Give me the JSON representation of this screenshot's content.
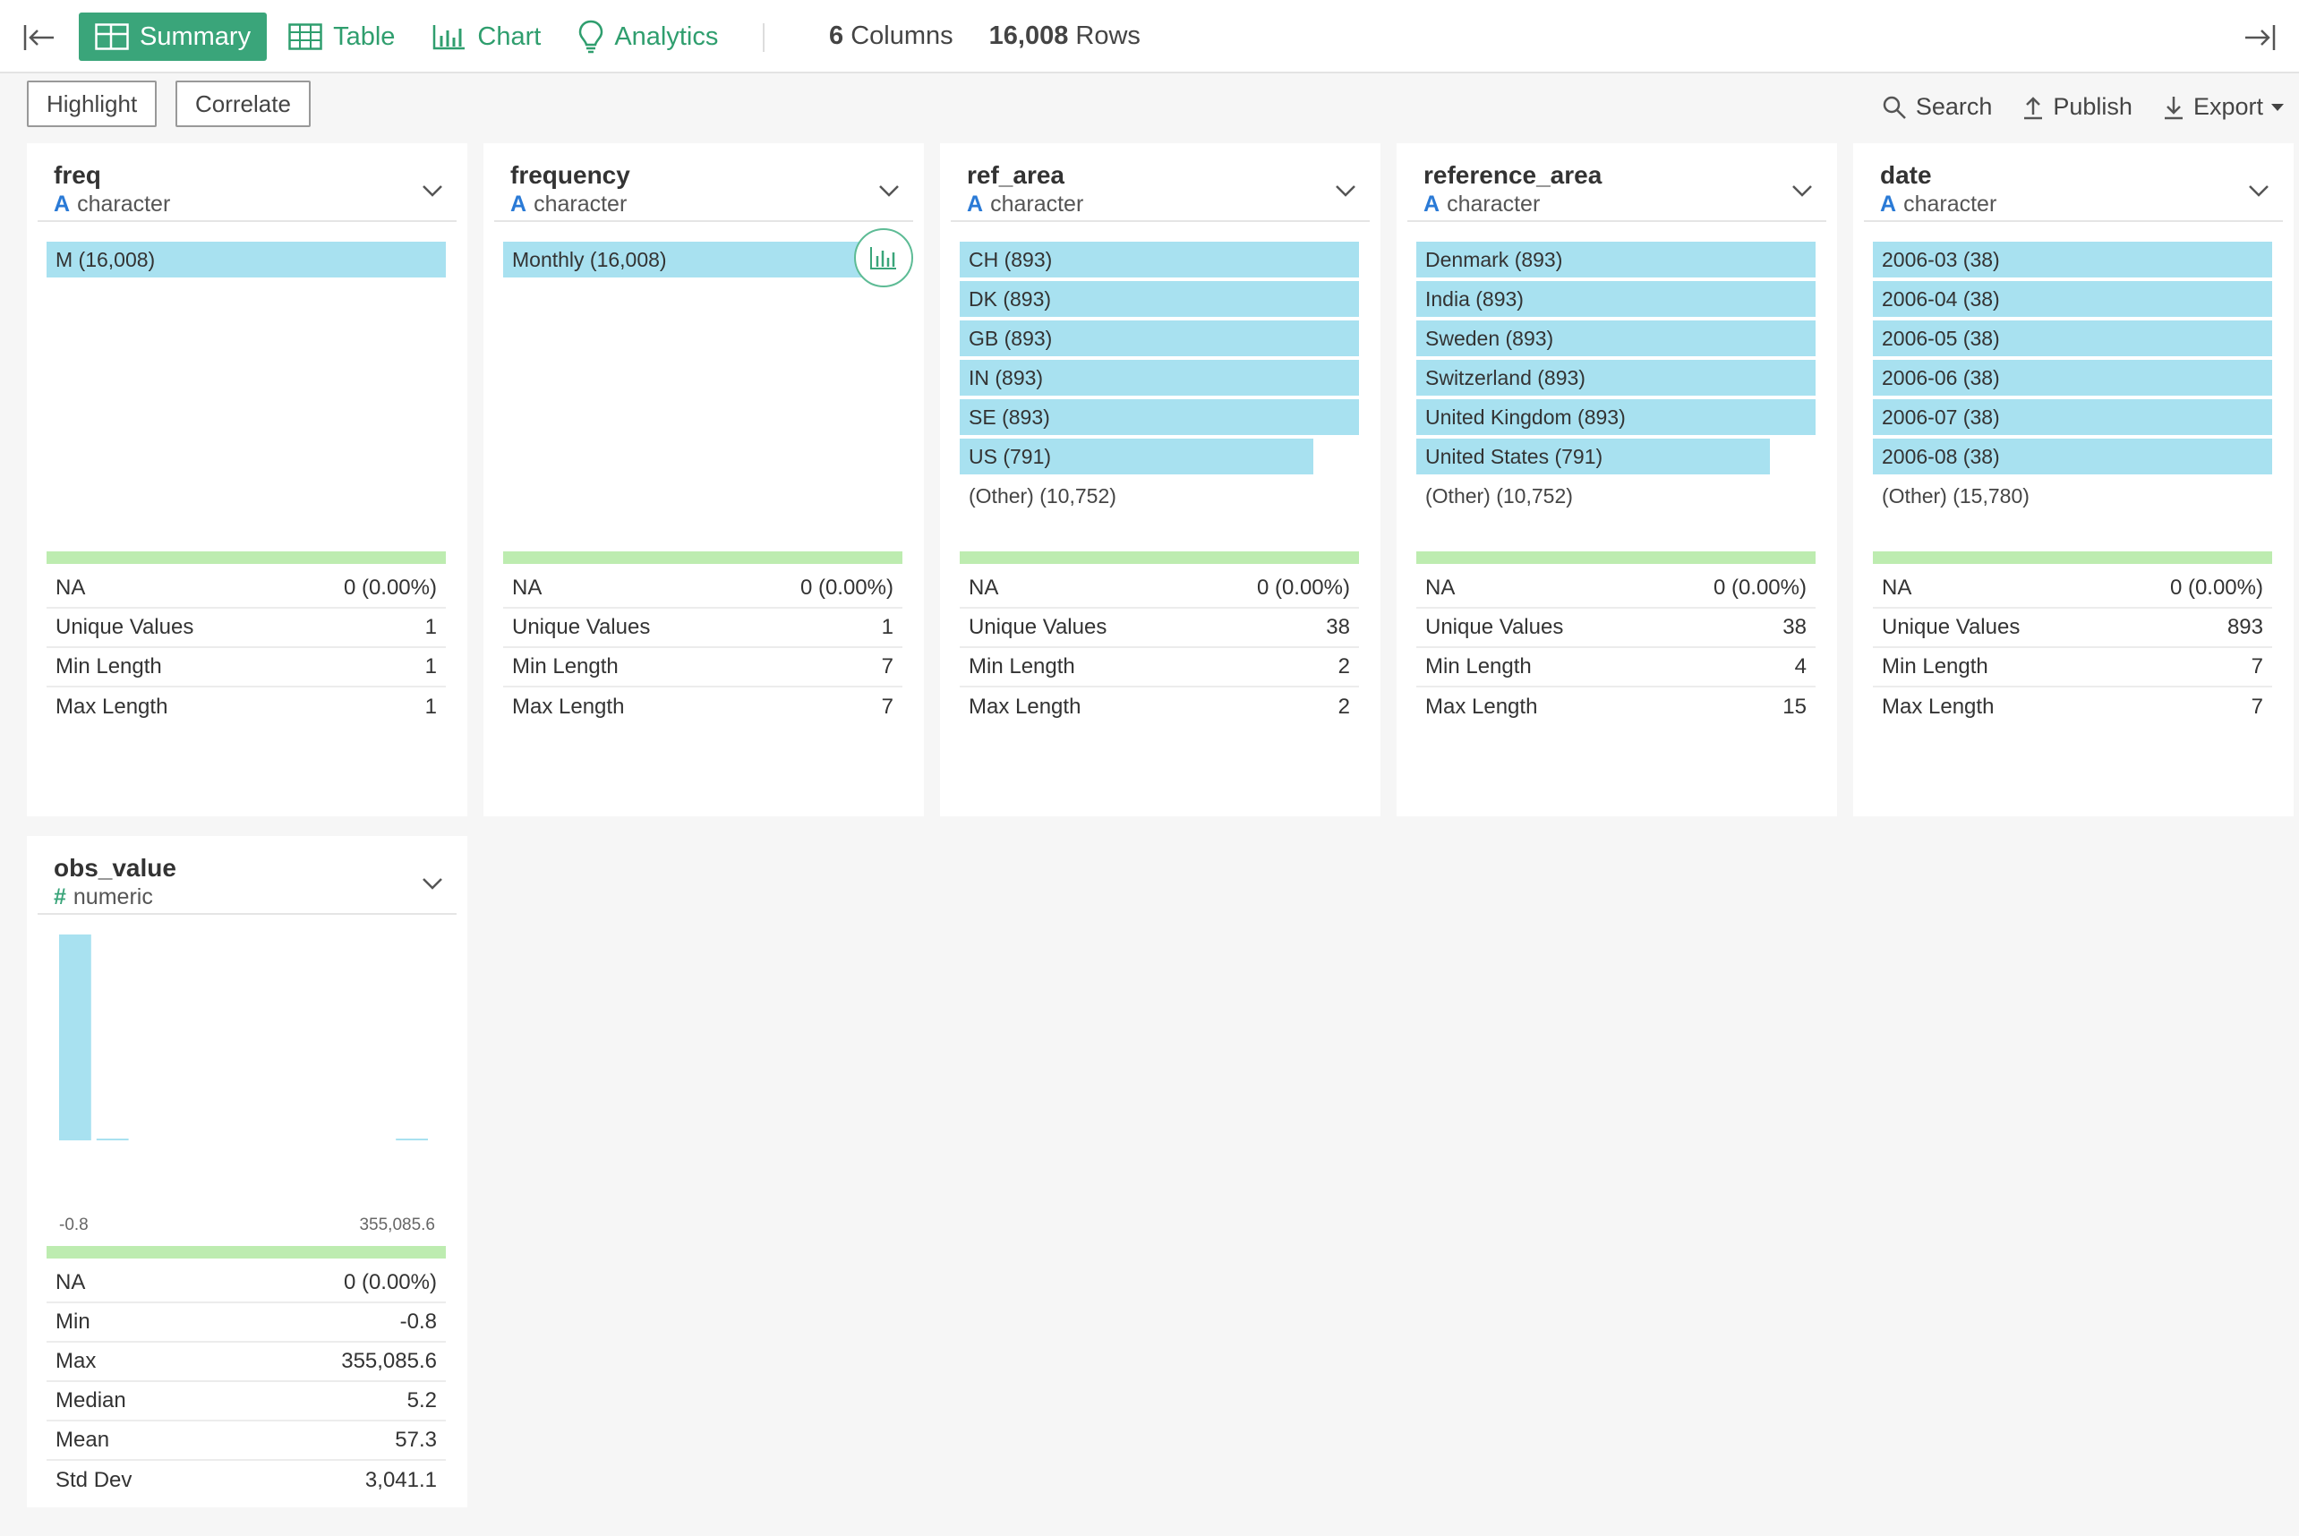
{
  "toolbar": {
    "tabs": [
      {
        "label": "Summary",
        "icon": "table-grid-icon"
      },
      {
        "label": "Table",
        "icon": "table-grid-icon"
      },
      {
        "label": "Chart",
        "icon": "bar-chart-icon"
      },
      {
        "label": "Analytics",
        "icon": "lightbulb-icon"
      }
    ],
    "columns_count": "6",
    "columns_word": "Columns",
    "rows_count": "16,008",
    "rows_word": "Rows",
    "highlight_label": "Highlight",
    "correlate_label": "Correlate",
    "search_label": "Search",
    "publish_label": "Publish",
    "export_label": "Export"
  },
  "columns": [
    {
      "name": "freq",
      "type": "character",
      "bars": [
        {
          "label": "M (16,008)",
          "fraction": 1.0
        }
      ],
      "other": "",
      "stats": [
        {
          "label": "NA",
          "value": "0 (0.00%)"
        },
        {
          "label": "Unique Values",
          "value": "1"
        },
        {
          "label": "Min Length",
          "value": "1"
        },
        {
          "label": "Max Length",
          "value": "1"
        }
      ]
    },
    {
      "name": "frequency",
      "type": "character",
      "bars": [
        {
          "label": "Monthly (16,008)",
          "fraction": 1.0
        }
      ],
      "other": "",
      "stats": [
        {
          "label": "NA",
          "value": "0 (0.00%)"
        },
        {
          "label": "Unique Values",
          "value": "1"
        },
        {
          "label": "Min Length",
          "value": "7"
        },
        {
          "label": "Max Length",
          "value": "7"
        }
      ]
    },
    {
      "name": "ref_area",
      "type": "character",
      "bars": [
        {
          "label": "CH (893)",
          "fraction": 1.0
        },
        {
          "label": "DK (893)",
          "fraction": 1.0
        },
        {
          "label": "GB (893)",
          "fraction": 1.0
        },
        {
          "label": "IN (893)",
          "fraction": 1.0
        },
        {
          "label": "SE (893)",
          "fraction": 1.0
        },
        {
          "label": "US (791)",
          "fraction": 0.886
        }
      ],
      "other": "(Other) (10,752)",
      "stats": [
        {
          "label": "NA",
          "value": "0 (0.00%)"
        },
        {
          "label": "Unique Values",
          "value": "38"
        },
        {
          "label": "Min Length",
          "value": "2"
        },
        {
          "label": "Max Length",
          "value": "2"
        }
      ]
    },
    {
      "name": "reference_area",
      "type": "character",
      "bars": [
        {
          "label": "Denmark (893)",
          "fraction": 1.0
        },
        {
          "label": "India (893)",
          "fraction": 1.0
        },
        {
          "label": "Sweden (893)",
          "fraction": 1.0
        },
        {
          "label": "Switzerland (893)",
          "fraction": 1.0
        },
        {
          "label": "United Kingdom (893)",
          "fraction": 1.0
        },
        {
          "label": "United States (791)",
          "fraction": 0.886
        }
      ],
      "other": "(Other) (10,752)",
      "stats": [
        {
          "label": "NA",
          "value": "0 (0.00%)"
        },
        {
          "label": "Unique Values",
          "value": "38"
        },
        {
          "label": "Min Length",
          "value": "4"
        },
        {
          "label": "Max Length",
          "value": "15"
        }
      ]
    },
    {
      "name": "date",
      "type": "character",
      "bars": [
        {
          "label": "2006-03 (38)",
          "fraction": 1.0
        },
        {
          "label": "2006-04 (38)",
          "fraction": 1.0
        },
        {
          "label": "2006-05 (38)",
          "fraction": 1.0
        },
        {
          "label": "2006-06 (38)",
          "fraction": 1.0
        },
        {
          "label": "2006-07 (38)",
          "fraction": 1.0
        },
        {
          "label": "2006-08 (38)",
          "fraction": 1.0
        }
      ],
      "other": "(Other) (15,780)",
      "stats": [
        {
          "label": "NA",
          "value": "0 (0.00%)"
        },
        {
          "label": "Unique Values",
          "value": "893"
        },
        {
          "label": "Min Length",
          "value": "7"
        },
        {
          "label": "Max Length",
          "value": "7"
        }
      ]
    }
  ],
  "numeric_column": {
    "name": "obs_value",
    "type": "numeric",
    "stats": [
      {
        "label": "NA",
        "value": "0 (0.00%)"
      },
      {
        "label": "Min",
        "value": "-0.8"
      },
      {
        "label": "Max",
        "value": "355,085.6"
      },
      {
        "label": "Median",
        "value": "5.2"
      },
      {
        "label": "Mean",
        "value": "57.3"
      },
      {
        "label": "Std Dev",
        "value": "3,041.1"
      }
    ]
  },
  "chart_data": {
    "type": "bar",
    "title": "",
    "xlabel": "",
    "ylabel": "",
    "x_min_label": "-0.8",
    "x_max_label": "355,085.6",
    "bins": [
      {
        "relative_height": 1.0
      },
      {
        "relative_height": 0.005
      },
      {
        "relative_height": 0.0
      },
      {
        "relative_height": 0.0
      },
      {
        "relative_height": 0.0
      },
      {
        "relative_height": 0.0
      },
      {
        "relative_height": 0.0
      },
      {
        "relative_height": 0.0
      },
      {
        "relative_height": 0.0
      },
      {
        "relative_height": 0.006
      }
    ]
  }
}
